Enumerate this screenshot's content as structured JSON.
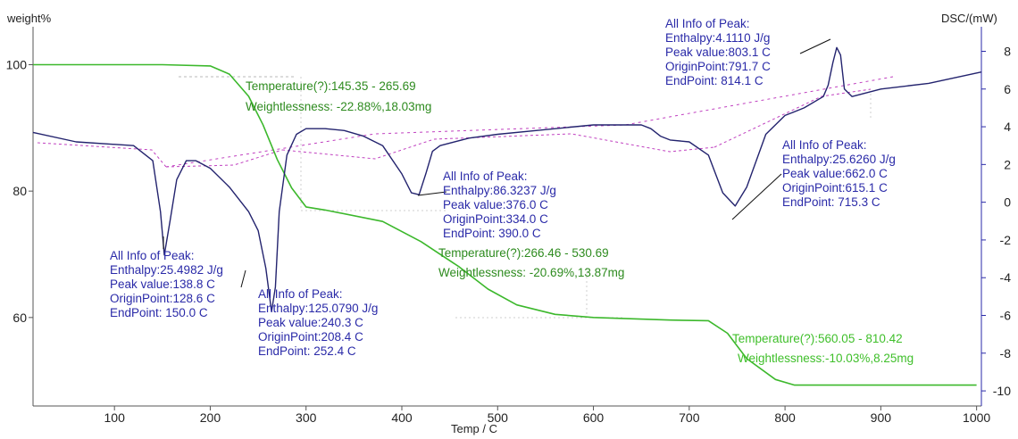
{
  "chart_data": {
    "type": "line",
    "xlabel": "Temp / C",
    "ylabel_left": "weight%",
    "ylabel_right": "DSC/(mW)",
    "xlim": [
      15,
      1005
    ],
    "ylim_left": [
      46,
      106
    ],
    "ylim_right": [
      -10.8,
      9.3
    ],
    "x_ticks": [
      "100",
      "200",
      "300",
      "400",
      "500",
      "600",
      "700",
      "800",
      "900",
      "1000"
    ],
    "y_left_ticks": [
      "100",
      "80",
      "60"
    ],
    "y_right_ticks": [
      "8",
      "6",
      "4",
      "2",
      "0",
      "-2",
      "-4",
      "-6",
      "-8",
      "-10"
    ],
    "series": [
      {
        "axis": "left",
        "color": "#3cb82c",
        "x": [
          15,
          150,
          200,
          220,
          240,
          255,
          270,
          285,
          300,
          320,
          380,
          420,
          460,
          490,
          520,
          560,
          600,
          680,
          720,
          740,
          760,
          790,
          810,
          850,
          900,
          1000
        ],
        "y": [
          100,
          100,
          99.8,
          98.5,
          95,
          90.5,
          85,
          80.5,
          77.5,
          77,
          75.2,
          72,
          68,
          64.5,
          62,
          60.5,
          60,
          59.6,
          59.5,
          57.5,
          53.5,
          50.2,
          49.3,
          49.3,
          49.3,
          49.3
        ]
      },
      {
        "axis": "right",
        "color": "#23236e",
        "x": [
          15,
          60,
          120,
          140,
          148,
          152,
          158,
          165,
          175,
          185,
          200,
          220,
          240,
          250,
          258,
          264,
          268,
          272,
          280,
          290,
          300,
          320,
          340,
          360,
          380,
          400,
          410,
          418,
          425,
          432,
          440,
          470,
          500,
          540,
          600,
          650,
          660,
          670,
          680,
          700,
          720,
          735,
          748,
          760,
          780,
          800,
          820,
          840,
          845,
          850,
          854,
          858,
          862,
          870,
          900,
          950,
          1005
        ],
        "y": [
          3.7,
          3.2,
          3,
          2.2,
          -0.5,
          -2.8,
          -1,
          1.2,
          2.2,
          2.2,
          1.8,
          0.8,
          -0.5,
          -1.5,
          -3.5,
          -5.8,
          -4.5,
          -0.5,
          2.5,
          3.6,
          3.9,
          3.9,
          3.8,
          3.5,
          3,
          1.5,
          0.5,
          0.4,
          1.5,
          2.7,
          3,
          3.4,
          3.6,
          3.8,
          4.1,
          4.1,
          3.9,
          3.5,
          3.3,
          3.2,
          2.5,
          0.5,
          -0.2,
          0.8,
          3.6,
          4.6,
          5,
          5.6,
          6.2,
          7.4,
          8.2,
          7.8,
          6,
          5.6,
          6,
          6.3,
          6.9
        ]
      }
    ],
    "annotations": [
      {
        "lines": [
          "All Info of Peak:",
          "Enthalpy:25.4982 J/g",
          "Peak value:138.8 C",
          "OriginPoint:128.6 C",
          "EndPoint: 150.0 C"
        ]
      },
      {
        "lines": [
          "All Info of Peak:",
          "Enthalpy:125.0790 J/g",
          "Peak value:240.3 C",
          "OriginPoint:208.4 C",
          "EndPoint: 252.4 C"
        ]
      },
      {
        "lines": [
          "All Info of Peak:",
          "Enthalpy:86.3237 J/g",
          "Peak value:376.0 C",
          "OriginPoint:334.0 C",
          "EndPoint: 390.0 C"
        ]
      },
      {
        "lines": [
          "All Info of Peak:",
          "Enthalpy:25.6260 J/g",
          "Peak value:662.0 C",
          "OriginPoint:615.1 C",
          "EndPoint: 715.3 C"
        ]
      },
      {
        "lines": [
          "All Info of Peak:",
          "Enthalpy:4.1110 J/g",
          "Peak value:803.1 C",
          "OriginPoint:791.7 C",
          "EndPoint: 814.1 C"
        ]
      }
    ],
    "weight_loss_labels": [
      {
        "temperature": "Temperature(?):145.35 - 265.69",
        "loss": "Weightlessness: -22.88%,18.03mg"
      },
      {
        "temperature": "Temperature(?):266.46 - 530.69",
        "loss": "Weightlessness: -20.69%,13.87mg"
      },
      {
        "temperature": "Temperature(?):560.05 - 810.42",
        "loss": "Weightlessness:-10.03%,8.25mg"
      }
    ]
  }
}
